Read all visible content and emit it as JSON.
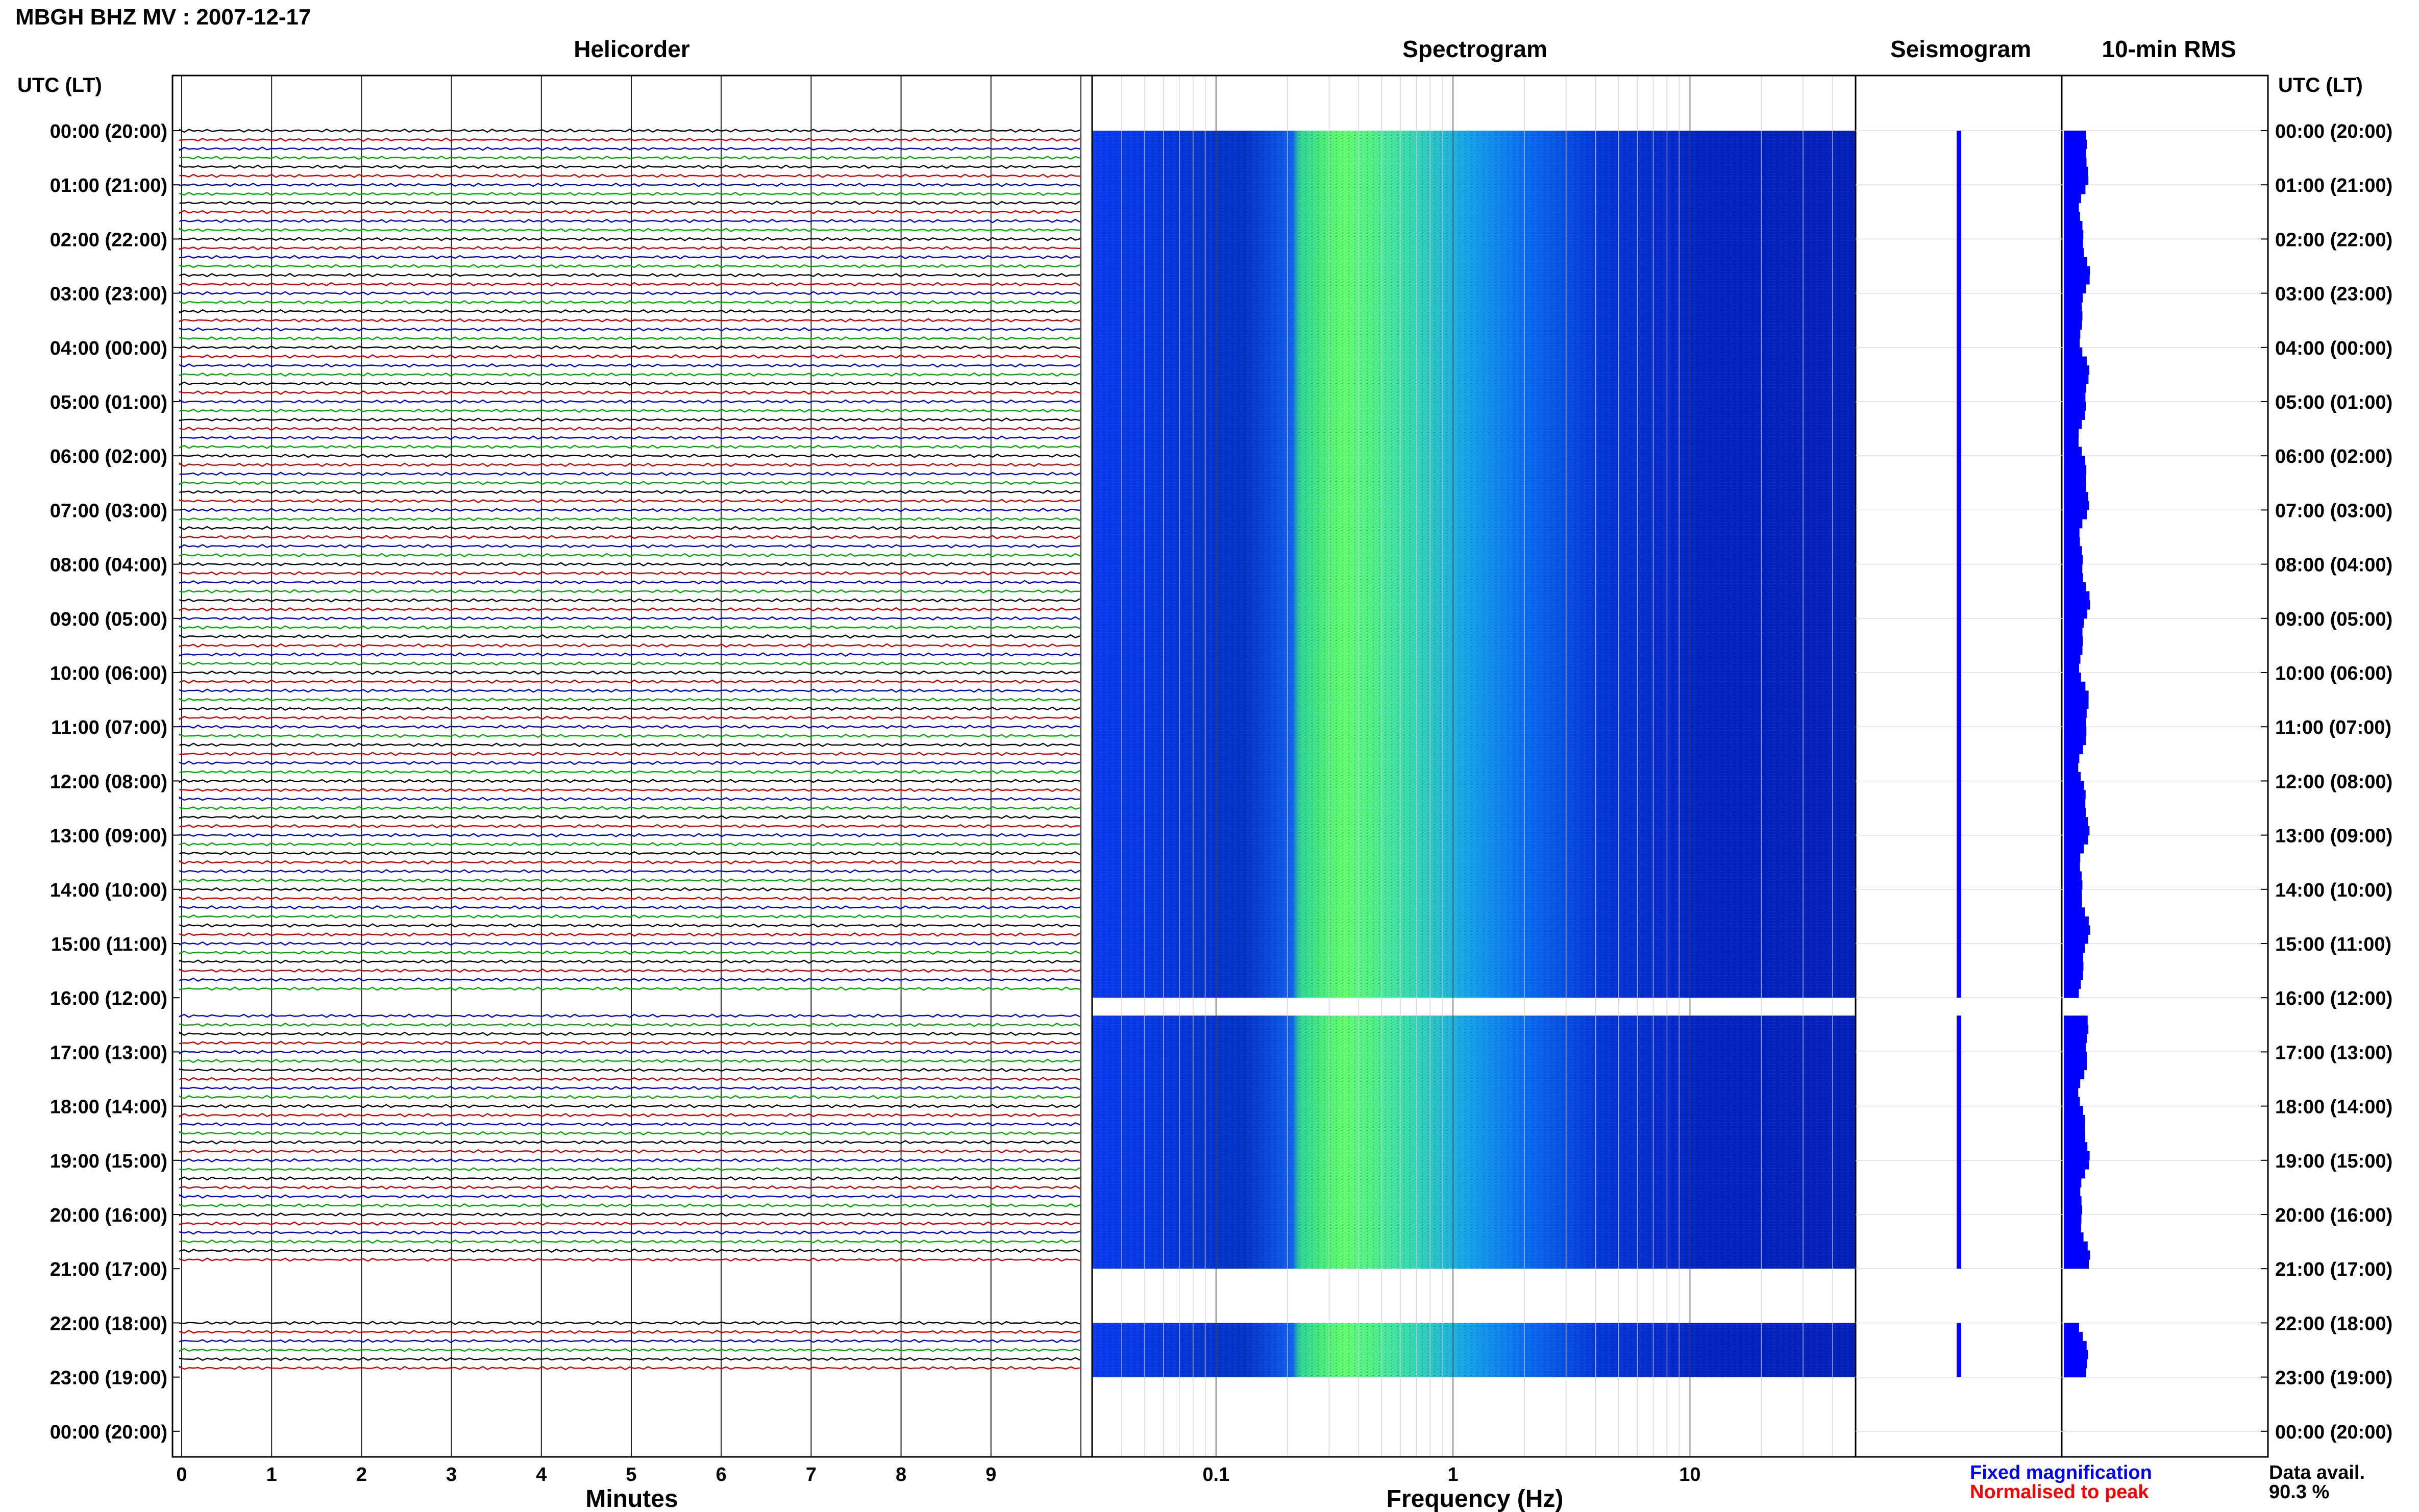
{
  "header": {
    "title": "MBGH BHZ MV : 2007-12-17"
  },
  "panels": {
    "helicorder": "Helicorder",
    "spectrogram": "Spectrogram",
    "seismogram": "Seismogram",
    "rms": "10-min RMS"
  },
  "axes": {
    "left_label": "UTC (LT)",
    "right_label": "UTC (LT)",
    "helicorder_xlabel": "Minutes",
    "spectrogram_xlabel": "Frequency (Hz)"
  },
  "legend": {
    "fixed": "Fixed magnification",
    "normalised": "Normalised to peak",
    "fixed_color": "#0000ff",
    "normalised_color": "#ff0000"
  },
  "availability": {
    "label": "Data avail.",
    "value": "90.3 %"
  },
  "colors": {
    "trace_cycle": [
      "#000000",
      "#cc0000",
      "#0000cc",
      "#00aa00"
    ],
    "spectrogram_low": "#0000a0",
    "spectrogram_high": "#66ff66",
    "rms_bar": "#0000ff"
  },
  "chart_data": {
    "type": "heatmap",
    "time_labels": [
      "00:00 (20:00)",
      "01:00 (21:00)",
      "02:00 (22:00)",
      "03:00 (23:00)",
      "04:00 (00:00)",
      "05:00 (01:00)",
      "06:00 (02:00)",
      "07:00 (03:00)",
      "08:00 (04:00)",
      "09:00 (05:00)",
      "10:00 (06:00)",
      "11:00 (07:00)",
      "12:00 (08:00)",
      "13:00 (09:00)",
      "14:00 (10:00)",
      "15:00 (11:00)",
      "16:00 (12:00)",
      "17:00 (13:00)",
      "18:00 (14:00)",
      "19:00 (15:00)",
      "20:00 (16:00)",
      "21:00 (17:00)",
      "22:00 (18:00)",
      "23:00 (19:00)",
      "00:00 (20:00)"
    ],
    "minute_ticks": [
      "0",
      "1",
      "2",
      "3",
      "4",
      "5",
      "6",
      "7",
      "8",
      "9"
    ],
    "minute_range": [
      0,
      10
    ],
    "frequency_ticks": [
      "0.1",
      "1",
      "10"
    ],
    "frequency_range_hz": [
      0.03,
      50
    ],
    "frequency_scale": "log",
    "data_segments_hours": [
      [
        0,
        16
      ],
      [
        16.33,
        21
      ],
      [
        22,
        23
      ]
    ],
    "data_availability_percent": 90.3
  }
}
